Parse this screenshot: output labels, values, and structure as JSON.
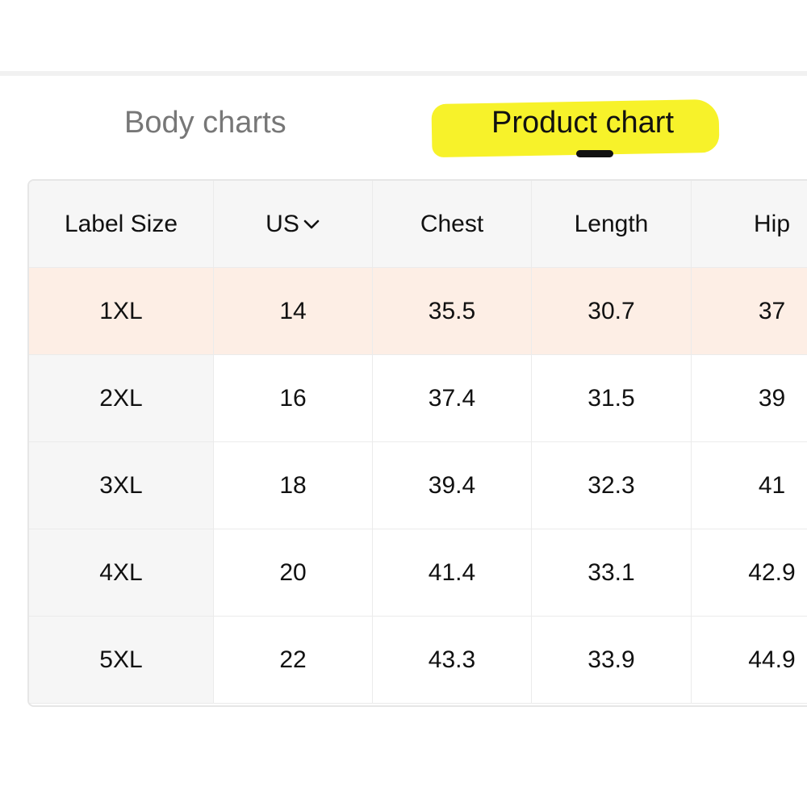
{
  "tabs": [
    "Body charts",
    "Product chart"
  ],
  "table": {
    "header": [
      "Label Size",
      "US",
      "Chest",
      "Length",
      "Hip"
    ],
    "rows": [
      [
        "1XL",
        "14",
        "35.5",
        "30.7",
        "37"
      ],
      [
        "2XL",
        "16",
        "37.4",
        "31.5",
        "39"
      ],
      [
        "3XL",
        "18",
        "39.4",
        "32.3",
        "41"
      ],
      [
        "4XL",
        "20",
        "41.4",
        "33.1",
        "42.9"
      ],
      [
        "5XL",
        "22",
        "43.3",
        "33.9",
        "44.9"
      ]
    ]
  }
}
